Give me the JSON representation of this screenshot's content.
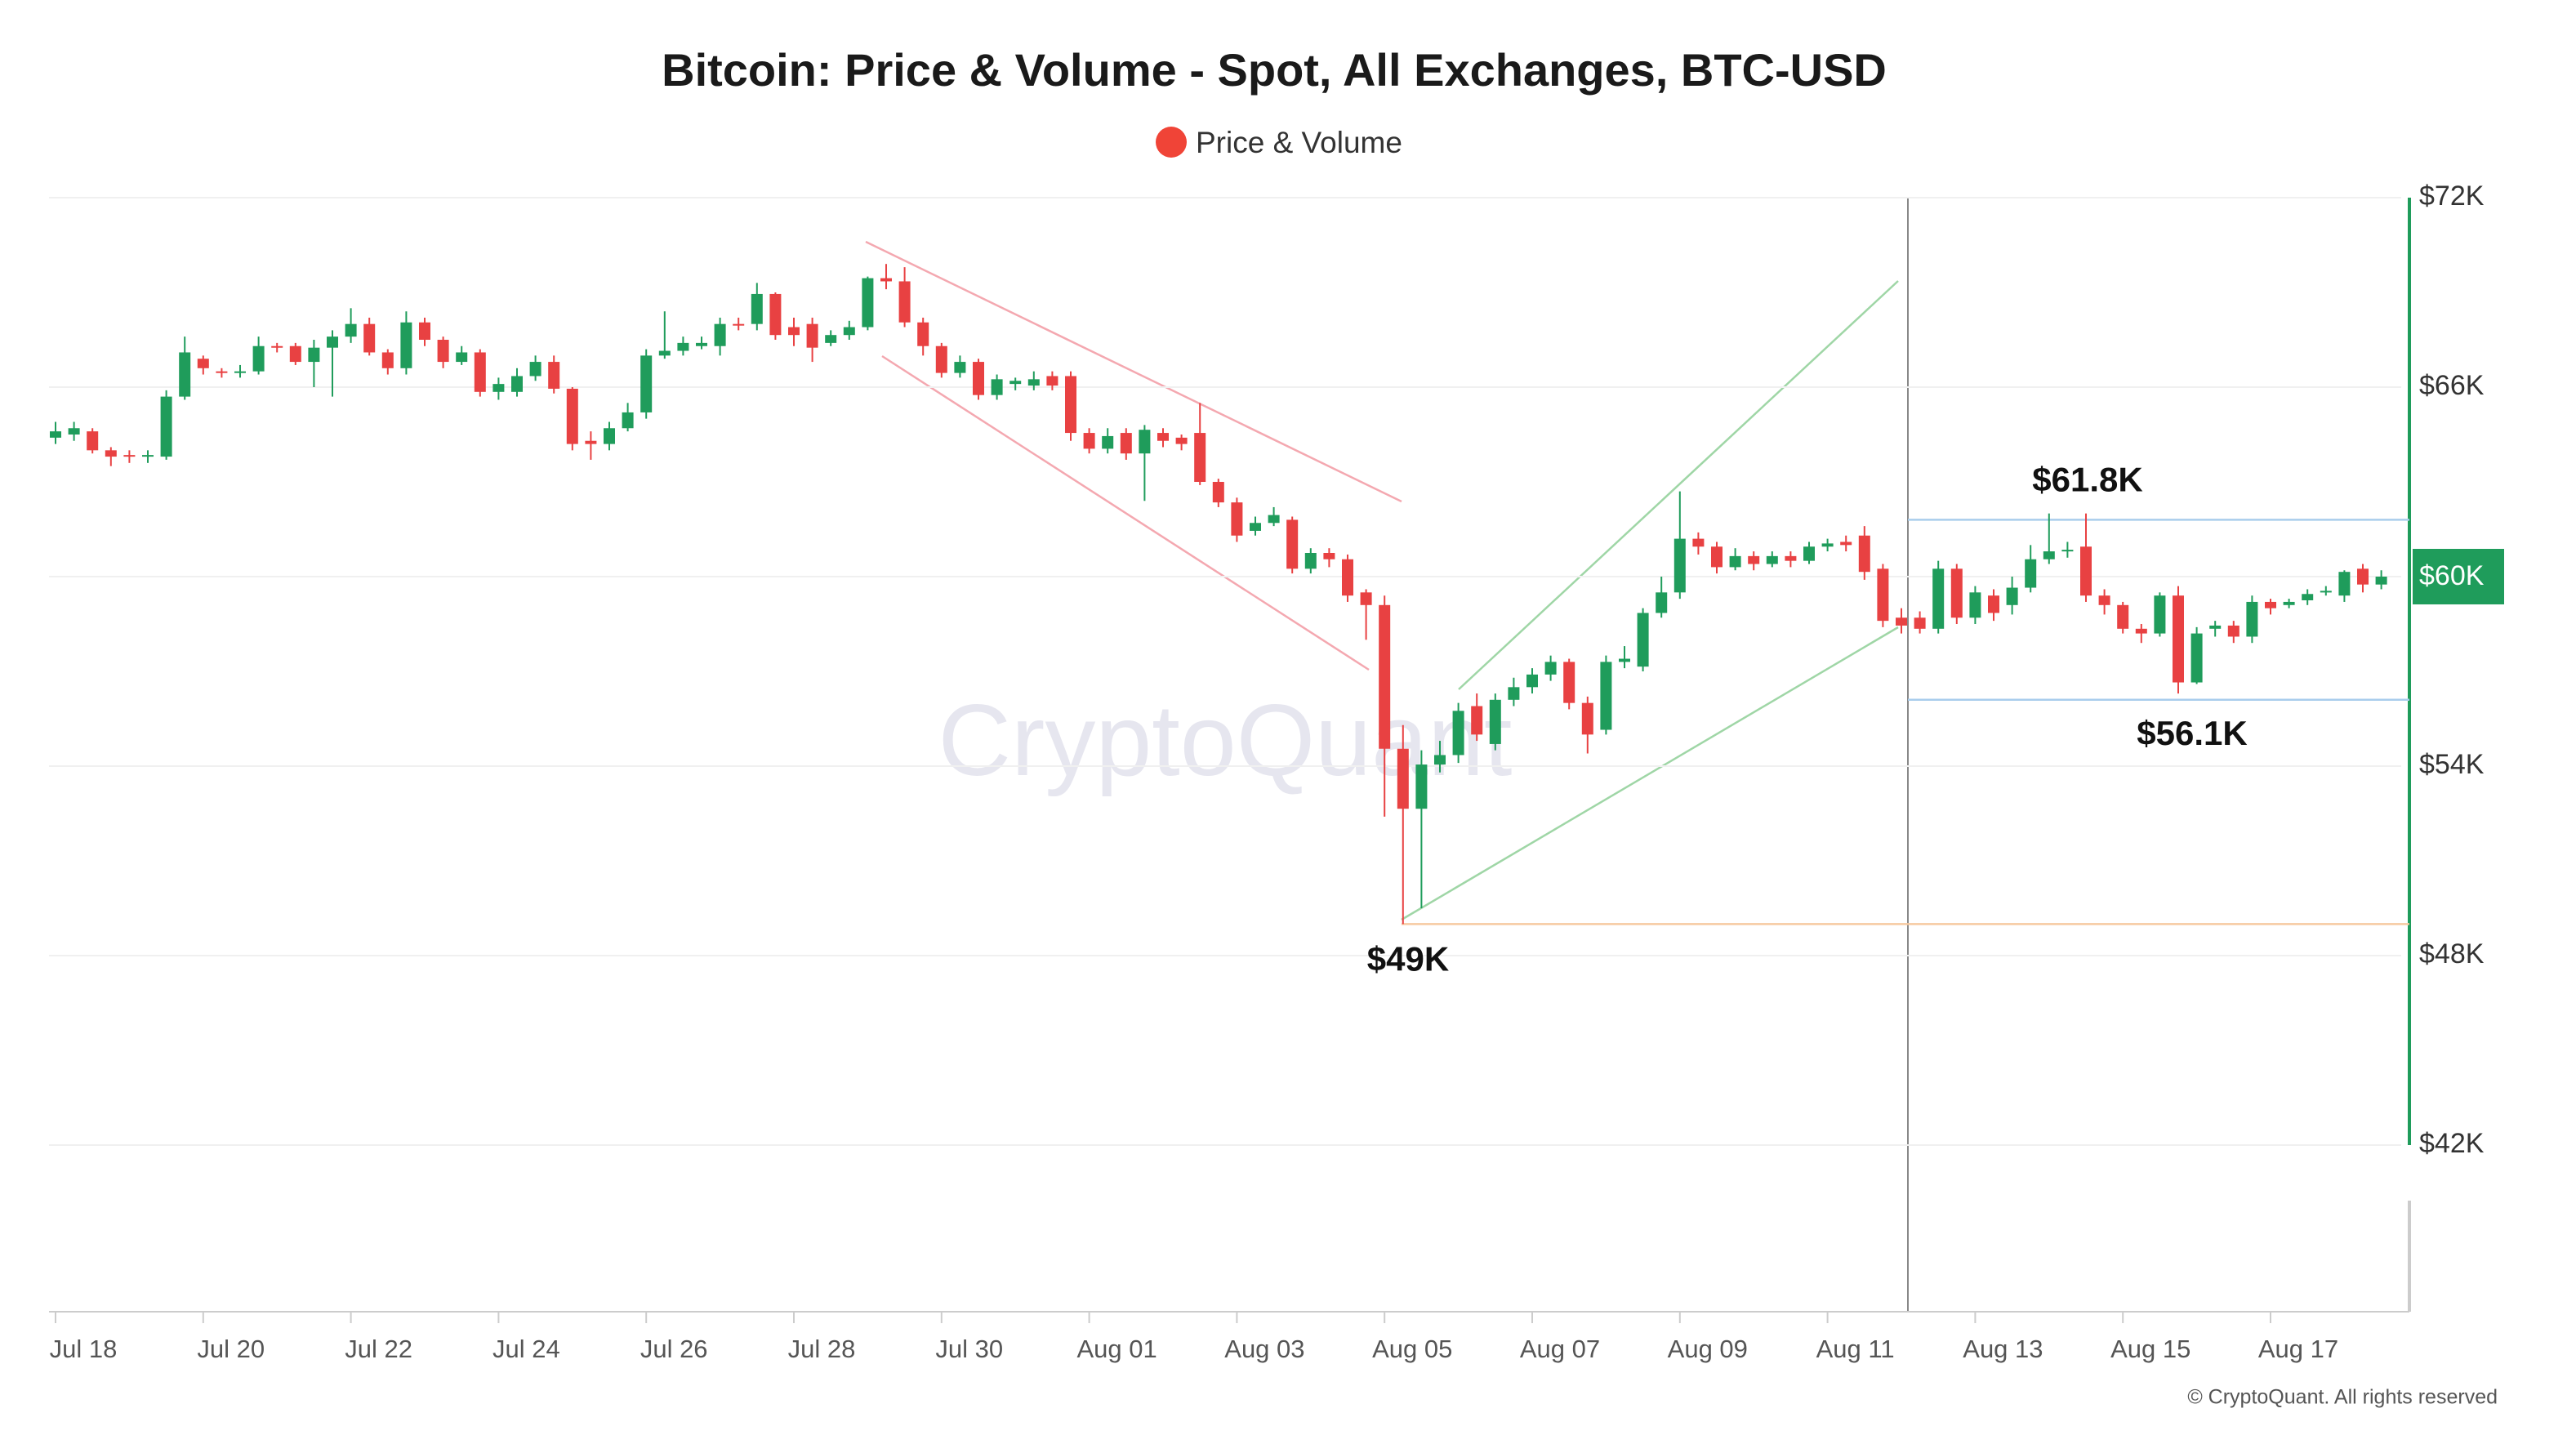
{
  "chart_data": {
    "type": "candlestick",
    "title": "Bitcoin: Price & Volume - Spot, All Exchanges, BTC-USD",
    "watermark": "CryptoQuant",
    "footer": "© CryptoQuant. All rights reserved",
    "categories": [
      "Jul 18",
      null,
      null,
      null,
      null,
      null,
      null,
      null,
      "Jul 20",
      null,
      null,
      null,
      null,
      null,
      null,
      null,
      "Jul 22",
      null,
      null,
      null,
      null,
      null,
      null,
      null,
      "Jul 24",
      null,
      null,
      null,
      null,
      null,
      null,
      null,
      "Jul 26",
      null,
      null,
      null,
      null,
      null,
      null,
      null,
      "Jul 28",
      null,
      null,
      null,
      null,
      null,
      null,
      null,
      "Jul 30",
      null,
      null,
      null,
      null,
      null,
      null,
      null,
      "Aug 01",
      null,
      null,
      null,
      null,
      null,
      null,
      null,
      "Aug 03",
      null,
      null,
      null,
      null,
      null,
      null,
      null,
      "Aug 05",
      null,
      null,
      null,
      null,
      null,
      null,
      null,
      "Aug 07",
      null,
      null,
      null,
      null,
      null,
      null,
      null,
      "Aug 09",
      null,
      null,
      null,
      null,
      null,
      null,
      null,
      "Aug 11",
      null,
      null,
      null,
      null,
      null,
      null,
      null,
      "Aug 13",
      null,
      null,
      null,
      null,
      null,
      null,
      null,
      "Aug 15",
      null,
      null,
      null,
      null,
      null,
      null,
      null,
      "Aug 17",
      null,
      null,
      null,
      null,
      null,
      null
    ],
    "series": [
      {
        "name": "Price & Volume",
        "color": "#f04437",
        "up_color": "#1f9c5b",
        "down_color": "#e84142",
        "open": [
          64.4,
          64.5,
          64.6,
          64.0,
          63.85,
          63.8,
          63.8,
          65.7,
          66.9,
          66.5,
          66.45,
          66.5,
          67.3,
          67.3,
          66.8,
          67.25,
          67.6,
          68.0,
          67.1,
          66.6,
          68.05,
          67.5,
          66.8,
          67.1,
          65.85,
          65.85,
          66.35,
          66.8,
          65.95,
          64.3,
          64.2,
          64.7,
          65.2,
          67.0,
          67.15,
          67.3,
          67.3,
          68.0,
          68.0,
          68.95,
          67.9,
          68.0,
          67.4,
          67.65,
          67.9,
          69.45,
          69.35,
          68.05,
          67.3,
          66.45,
          66.8,
          65.75,
          66.1,
          66.05,
          66.35,
          66.35,
          64.55,
          64.05,
          64.55,
          63.9,
          64.55,
          64.4,
          64.55,
          63.0,
          62.35,
          61.45,
          61.7,
          61.8,
          60.25,
          60.75,
          60.55,
          59.5,
          59.1,
          54.55,
          52.65,
          54.05,
          54.35,
          55.9,
          54.7,
          56.1,
          56.5,
          56.9,
          57.3,
          56.0,
          55.15,
          57.3,
          57.15,
          58.85,
          59.5,
          61.2,
          60.95,
          60.3,
          60.65,
          60.4,
          60.65,
          60.5,
          60.95,
          61.1,
          61.3,
          60.25,
          58.7,
          58.7,
          58.35,
          60.25,
          58.7,
          59.4,
          59.1,
          59.65,
          60.55,
          60.8,
          60.95,
          59.4,
          59.1,
          58.35,
          58.2,
          59.4,
          56.65,
          58.35,
          58.45,
          58.1,
          59.2,
          59.1,
          59.25,
          59.5,
          59.4,
          60.25,
          59.75
        ],
        "high": [
          64.9,
          64.9,
          64.7,
          64.1,
          64.0,
          64.0,
          65.9,
          67.6,
          67.0,
          66.6,
          66.7,
          67.6,
          67.4,
          67.4,
          67.5,
          67.8,
          68.5,
          68.2,
          67.2,
          68.4,
          68.2,
          67.6,
          67.3,
          67.2,
          66.3,
          66.6,
          67.0,
          67.0,
          66.0,
          64.6,
          64.9,
          65.5,
          67.2,
          68.4,
          67.6,
          67.6,
          68.2,
          68.2,
          69.3,
          69.0,
          68.2,
          68.2,
          67.8,
          68.1,
          69.5,
          69.9,
          69.8,
          68.2,
          67.4,
          67.0,
          66.9,
          66.4,
          66.3,
          66.5,
          66.5,
          66.5,
          64.7,
          64.7,
          64.7,
          64.8,
          64.7,
          64.5,
          65.5,
          63.1,
          62.5,
          61.9,
          62.2,
          61.9,
          60.9,
          60.9,
          60.7,
          59.6,
          59.4,
          55.3,
          54.5,
          54.8,
          56.0,
          56.3,
          56.3,
          56.8,
          57.1,
          57.5,
          57.4,
          56.2,
          57.5,
          57.8,
          59.0,
          60.0,
          62.7,
          61.4,
          61.1,
          60.9,
          60.8,
          60.8,
          60.8,
          61.1,
          61.2,
          61.3,
          61.6,
          60.4,
          59.0,
          58.9,
          60.5,
          60.4,
          59.7,
          59.6,
          60.0,
          61.0,
          62.0,
          61.1,
          62.0,
          59.6,
          59.2,
          58.5,
          59.5,
          59.7,
          58.4,
          58.6,
          58.6,
          59.4,
          59.3,
          59.3,
          59.6,
          59.7,
          60.2,
          60.4,
          60.2
        ],
        "low": [
          64.2,
          64.3,
          63.9,
          63.5,
          63.6,
          63.6,
          63.7,
          65.6,
          66.4,
          66.3,
          66.3,
          66.4,
          67.1,
          66.7,
          66.0,
          65.7,
          67.4,
          67.0,
          66.4,
          66.4,
          67.3,
          66.6,
          66.7,
          65.7,
          65.6,
          65.7,
          66.2,
          65.8,
          64.0,
          63.7,
          64.0,
          64.6,
          65.0,
          66.9,
          67.0,
          67.2,
          67.0,
          67.8,
          67.8,
          67.5,
          67.3,
          66.8,
          67.3,
          67.5,
          67.8,
          69.1,
          67.9,
          67.0,
          66.3,
          66.3,
          65.6,
          65.6,
          65.9,
          65.9,
          65.9,
          64.3,
          63.9,
          63.9,
          63.7,
          62.4,
          64.1,
          64.0,
          62.9,
          62.2,
          61.1,
          61.3,
          61.6,
          60.1,
          60.1,
          60.3,
          59.2,
          58.0,
          52.4,
          49.0,
          49.5,
          53.8,
          54.1,
          54.8,
          54.5,
          55.9,
          56.3,
          56.7,
          55.8,
          54.4,
          55.0,
          57.1,
          57.0,
          58.7,
          59.3,
          60.7,
          60.1,
          60.2,
          60.2,
          60.3,
          60.3,
          60.4,
          60.8,
          60.8,
          59.9,
          58.4,
          58.2,
          58.2,
          58.2,
          58.5,
          58.5,
          58.6,
          58.8,
          59.5,
          60.4,
          60.6,
          59.2,
          58.8,
          58.2,
          57.9,
          58.1,
          56.3,
          56.6,
          58.1,
          57.9,
          57.9,
          58.8,
          59.0,
          59.1,
          59.4,
          59.2,
          59.5,
          59.6
        ],
        "close": [
          64.6,
          64.7,
          64.0,
          63.8,
          63.8,
          63.85,
          65.7,
          67.1,
          66.6,
          66.45,
          66.5,
          67.3,
          67.25,
          66.8,
          67.25,
          67.6,
          68.0,
          67.1,
          66.6,
          68.05,
          67.5,
          66.8,
          67.1,
          65.85,
          66.1,
          66.35,
          66.8,
          65.95,
          64.2,
          64.2,
          64.7,
          65.2,
          67.0,
          67.15,
          67.4,
          67.4,
          68.0,
          67.95,
          68.95,
          67.65,
          67.65,
          67.25,
          67.65,
          67.9,
          69.45,
          69.35,
          68.05,
          67.3,
          66.45,
          66.8,
          65.75,
          66.25,
          66.2,
          66.25,
          66.05,
          64.55,
          64.05,
          64.45,
          63.9,
          64.65,
          64.3,
          64.2,
          63.0,
          62.35,
          61.3,
          61.7,
          61.95,
          60.25,
          60.75,
          60.55,
          59.4,
          59.1,
          54.55,
          52.65,
          54.05,
          54.35,
          55.75,
          55.0,
          56.1,
          56.5,
          56.9,
          57.3,
          56.0,
          55.0,
          57.3,
          57.4,
          58.85,
          59.5,
          61.2,
          60.95,
          60.3,
          60.65,
          60.4,
          60.65,
          60.5,
          60.95,
          61.05,
          61.0,
          60.15,
          58.6,
          58.45,
          58.35,
          60.25,
          58.7,
          59.5,
          58.85,
          59.65,
          60.55,
          60.8,
          60.85,
          59.4,
          59.1,
          58.35,
          58.2,
          59.4,
          56.65,
          58.2,
          58.45,
          58.1,
          59.2,
          59.0,
          59.2,
          59.45,
          59.55,
          60.15,
          59.75,
          60.0
        ]
      }
    ],
    "ylim": [
      42,
      72
    ],
    "yticks": [
      {
        "value": 42,
        "label": "$42K"
      },
      {
        "value": 48,
        "label": "$48K"
      },
      {
        "value": 54,
        "label": "$54K"
      },
      {
        "value": 60,
        "label": "$60K"
      },
      {
        "value": 66,
        "label": "$66K"
      },
      {
        "value": 72,
        "label": "$72K"
      }
    ],
    "grid": true,
    "annotations": [
      {
        "label": "$61.8K",
        "value": 61.8,
        "color": "#a9cdec"
      },
      {
        "label": "$56.1K",
        "value": 56.1,
        "color": "#a9cdec"
      },
      {
        "label": "$49K",
        "value": 49,
        "color": "#f6c9a0"
      }
    ],
    "last_price": {
      "value": 60,
      "label": "$60K",
      "color": "#1f9c5b"
    }
  }
}
